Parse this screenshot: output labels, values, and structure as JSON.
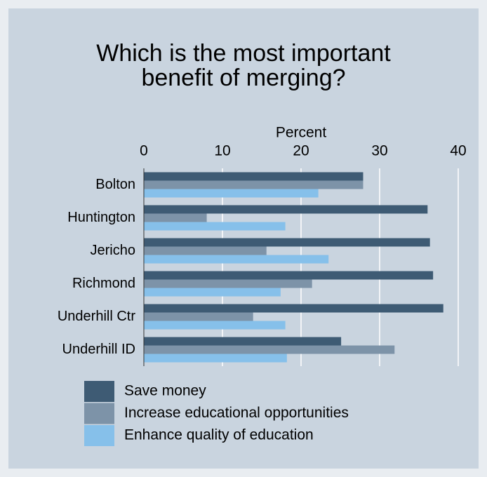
{
  "chart_data": {
    "type": "bar",
    "orientation": "horizontal",
    "title": [
      "Which is the most important",
      "benefit of merging?"
    ],
    "x_label": "Percent",
    "categories": [
      "Bolton",
      "Huntington",
      "Jericho",
      "Richmond",
      "Underhill Ctr",
      "Underhill ID"
    ],
    "series": [
      {
        "name": "Save money",
        "color": "#3e5b74",
        "values": [
          27.9,
          36.1,
          36.4,
          36.8,
          38.1,
          25.1
        ]
      },
      {
        "name": "Increase educational opportunities",
        "color": "#7d93a8",
        "values": [
          27.9,
          8.0,
          15.6,
          21.4,
          13.9,
          31.9
        ]
      },
      {
        "name": "Enhance quality of education",
        "color": "#86c0ea",
        "values": [
          22.2,
          18.0,
          23.5,
          17.4,
          18.0,
          18.2
        ]
      }
    ],
    "xlim": [
      0,
      40
    ],
    "xticks": [
      0,
      10,
      20,
      30,
      40
    ],
    "grid": true
  }
}
